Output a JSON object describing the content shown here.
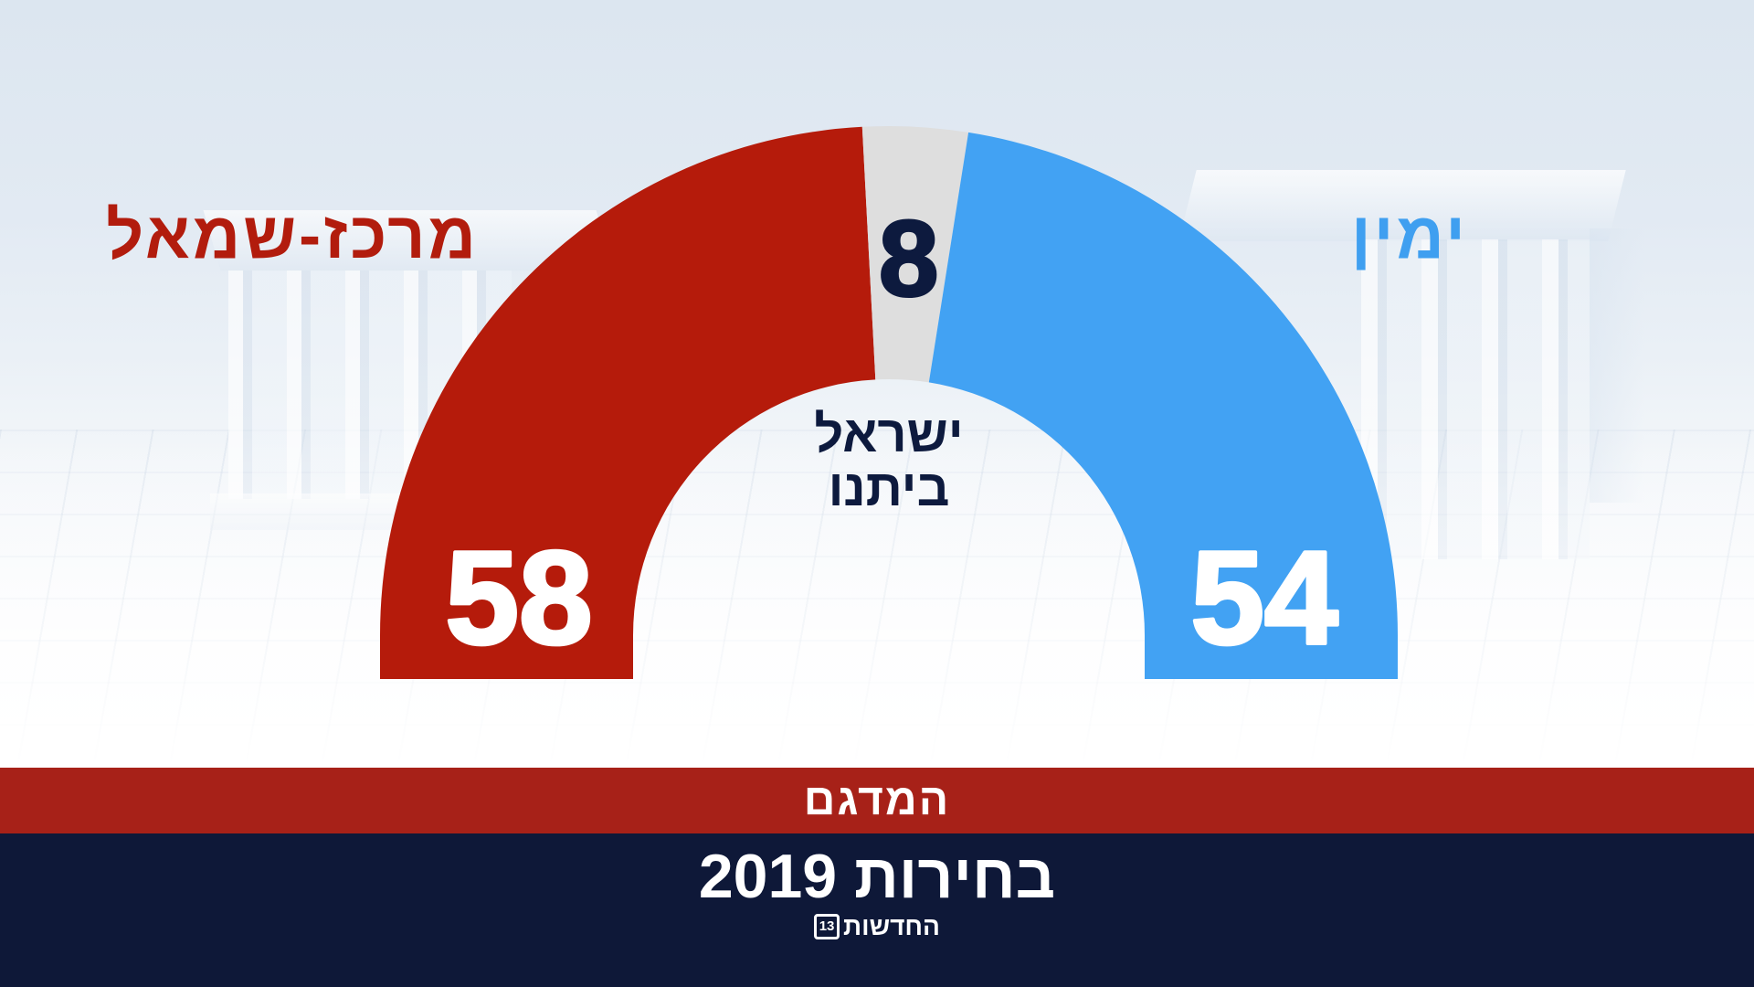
{
  "chart_data": {
    "type": "pie",
    "shape": "half-donut",
    "slices": [
      {
        "label": "מרכז-שמאל",
        "value": 58,
        "color": "#b51b0b",
        "value_color": "#ffffff",
        "label_color": "#b21c0d"
      },
      {
        "label_lines": [
          "ישראל",
          "ביתנו"
        ],
        "value": 8,
        "color": "#dedede",
        "value_color": "#0d1a3e",
        "label_color": "#0d1a3e"
      },
      {
        "label": "ימין",
        "value": 54,
        "color": "#42a2f3",
        "value_color": "#ffffff",
        "label_color": "#3f9ff0"
      }
    ]
  },
  "banner": {
    "title": "המדגם",
    "color": "#a72118"
  },
  "footer": {
    "headline": "בחירות 2019",
    "color": "#0e1838",
    "logo": {
      "text": "החדשות",
      "number": "13"
    }
  }
}
